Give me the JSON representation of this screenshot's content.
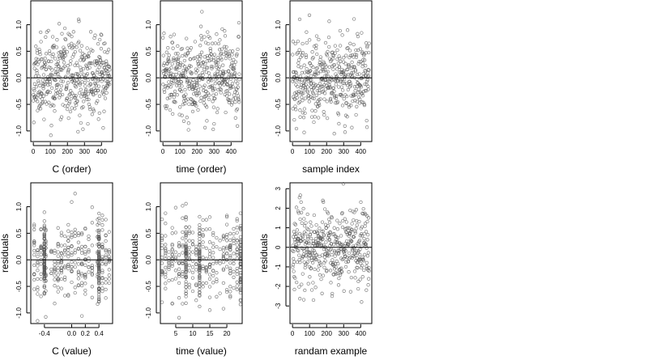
{
  "chart_data": [
    {
      "type": "scatter",
      "seed": 11,
      "pattern": "random",
      "xlabel": "C (order)",
      "ylabel": "residuals",
      "xlim": [
        -15,
        465
      ],
      "ylim": [
        -1.2,
        1.45
      ],
      "xticks": [
        0,
        100,
        200,
        300,
        400
      ],
      "xtick_labels": [
        "0",
        "100",
        "200",
        "300",
        "400"
      ],
      "yticks": [
        -1.0,
        -0.5,
        0.0,
        0.5,
        1.0
      ],
      "ytick_labels": [
        "-1.0",
        "-0.5",
        "0.0",
        "0.5",
        "1.0"
      ],
      "sd": 0.38,
      "n": 450,
      "reference_line_y": 0
    },
    {
      "type": "scatter",
      "seed": 23,
      "pattern": "random",
      "xlabel": "time (order)",
      "ylabel": "residuals",
      "xlim": [
        -15,
        465
      ],
      "ylim": [
        -1.2,
        1.45
      ],
      "xticks": [
        0,
        100,
        200,
        300,
        400
      ],
      "xtick_labels": [
        "0",
        "100",
        "200",
        "300",
        "400"
      ],
      "yticks": [
        -1.0,
        -0.5,
        0.0,
        0.5,
        1.0
      ],
      "ytick_labels": [
        "-1.0",
        "-0.5",
        "0.0",
        "0.5",
        "1.0"
      ],
      "sd": 0.38,
      "n": 450,
      "reference_line_y": 0
    },
    {
      "type": "scatter",
      "seed": 37,
      "pattern": "random",
      "xlabel": "sample index",
      "ylabel": "residuals",
      "xlim": [
        -15,
        465
      ],
      "ylim": [
        -1.2,
        1.45
      ],
      "xticks": [
        0,
        100,
        200,
        300,
        400
      ],
      "xtick_labels": [
        "0",
        "100",
        "200",
        "300",
        "400"
      ],
      "yticks": [
        -1.0,
        -0.5,
        0.0,
        0.5,
        1.0
      ],
      "ytick_labels": [
        "-1.0",
        "-0.5",
        "0.0",
        "0.5",
        "1.0"
      ],
      "sd": 0.38,
      "n": 450,
      "reference_line_y": 0
    },
    {
      "type": "scatter",
      "seed": 41,
      "pattern": "grouped",
      "xlabel": "C (value)",
      "ylabel": "residuals",
      "xlim": [
        -0.6,
        0.6
      ],
      "ylim": [
        -1.2,
        1.45
      ],
      "xticks": [
        -0.4,
        0.0,
        0.2,
        0.4
      ],
      "xtick_labels": [
        "-0.4",
        "0.0",
        "0.2",
        "0.4"
      ],
      "yticks": [
        -1.0,
        -0.5,
        0.0,
        0.5,
        1.0
      ],
      "ytick_labels": [
        "-1.0",
        "-0.5",
        "0.0",
        "0.5",
        "1.0"
      ],
      "groups": [
        -0.55,
        -0.5,
        -0.45,
        -0.38,
        -0.3,
        -0.25,
        -0.2,
        -0.15,
        -0.1,
        -0.05,
        0.0,
        0.05,
        0.1,
        0.15,
        0.2,
        0.25,
        0.3,
        0.38,
        0.4,
        0.45,
        0.5,
        0.55
      ],
      "heavy_groups": [
        -0.4,
        0.4
      ],
      "sd": 0.38,
      "n": 450,
      "reference_line_y": 0
    },
    {
      "type": "scatter",
      "seed": 53,
      "pattern": "grouped",
      "xlabel": "time (value)",
      "ylabel": "residuals",
      "xlim": [
        0.5,
        24.5
      ],
      "ylim": [
        -1.2,
        1.45
      ],
      "xticks": [
        5,
        10,
        15,
        20
      ],
      "xtick_labels": [
        "5",
        "10",
        "15",
        "20"
      ],
      "yticks": [
        -1.0,
        -0.5,
        0.0,
        0.5,
        1.0
      ],
      "ytick_labels": [
        "-1.0",
        "-0.5",
        "0.0",
        "0.5",
        "1.0"
      ],
      "groups": [
        1,
        2,
        3,
        4,
        5,
        6,
        7,
        8,
        9,
        10,
        11,
        12,
        13,
        14,
        15,
        16,
        17,
        18,
        19,
        20,
        21,
        22,
        23,
        24
      ],
      "heavy_groups": [
        8,
        12,
        24
      ],
      "sd": 0.38,
      "n": 450,
      "reference_line_y": 0
    },
    {
      "type": "scatter",
      "seed": 67,
      "pattern": "random",
      "xlabel": "randam example",
      "ylabel": "residuals",
      "xlim": [
        -15,
        465
      ],
      "ylim": [
        -3.9,
        3.3
      ],
      "xticks": [
        0,
        100,
        200,
        300,
        400
      ],
      "xtick_labels": [
        "0",
        "100",
        "200",
        "300",
        "400"
      ],
      "yticks": [
        -3,
        -2,
        -1,
        0,
        1,
        2,
        3
      ],
      "ytick_labels": [
        "-3",
        "-2",
        "-1",
        "0",
        "1",
        "2",
        "3"
      ],
      "sd": 1.0,
      "n": 450,
      "reference_line_y": 0
    }
  ]
}
